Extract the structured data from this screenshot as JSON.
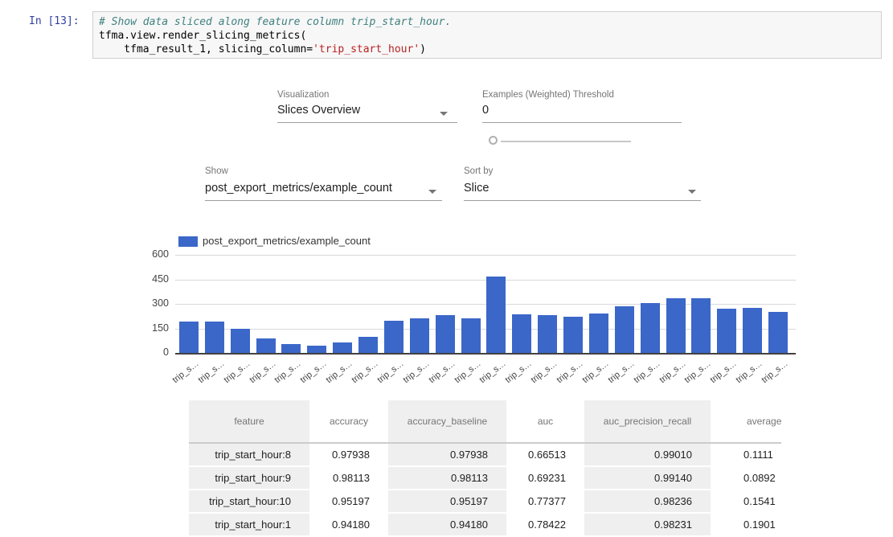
{
  "notebook": {
    "prompt": "In [13]:",
    "code": {
      "comment": "# Show data sliced along feature column trip_start_hour.",
      "line2": "tfma.view.render_slicing_metrics(",
      "line3_pre": "    tfma_result_1, slicing_column=",
      "line3_string": "'trip_start_hour'",
      "line3_post": ")"
    }
  },
  "controls": {
    "visualization": {
      "label": "Visualization",
      "value": "Slices Overview"
    },
    "threshold": {
      "label": "Examples (Weighted) Threshold",
      "value": "0"
    },
    "show": {
      "label": "Show",
      "value": "post_export_metrics/example_count"
    },
    "sort": {
      "label": "Sort by",
      "value": "Slice"
    }
  },
  "chart_data": {
    "type": "bar",
    "legend": "post_export_metrics/example_count",
    "legend_position": "top",
    "grid": true,
    "bar_color": "#3b67c9",
    "ylim": [
      0,
      600
    ],
    "yticks": [
      0,
      150,
      300,
      450,
      600
    ],
    "categories": [
      "trip_s…",
      "trip_s…",
      "trip_s…",
      "trip_s…",
      "trip_s…",
      "trip_s…",
      "trip_s…",
      "trip_s…",
      "trip_s…",
      "trip_s…",
      "trip_s…",
      "trip_s…",
      "trip_s…",
      "trip_s…",
      "trip_s…",
      "trip_s…",
      "trip_s…",
      "trip_s…",
      "trip_s…",
      "trip_s…",
      "trip_s…",
      "trip_s…",
      "trip_s…",
      "trip_s…"
    ],
    "values": [
      190,
      192,
      150,
      87,
      56,
      42,
      66,
      97,
      195,
      210,
      232,
      212,
      465,
      235,
      232,
      222,
      243,
      285,
      303,
      335,
      335,
      270,
      277,
      250
    ]
  },
  "table": {
    "headers": [
      "feature",
      "accuracy",
      "accuracy_baseline",
      "auc",
      "auc_precision_recall",
      "average_los"
    ],
    "rows": [
      [
        "trip_start_hour:8",
        "0.97938",
        "0.97938",
        "0.66513",
        "0.99010",
        "0.1111"
      ],
      [
        "trip_start_hour:9",
        "0.98113",
        "0.98113",
        "0.69231",
        "0.99140",
        "0.0892"
      ],
      [
        "trip_start_hour:10",
        "0.95197",
        "0.95197",
        "0.77377",
        "0.98236",
        "0.1541"
      ],
      [
        "trip_start_hour:1",
        "0.94180",
        "0.94180",
        "0.78422",
        "0.98231",
        "0.1901"
      ]
    ]
  }
}
